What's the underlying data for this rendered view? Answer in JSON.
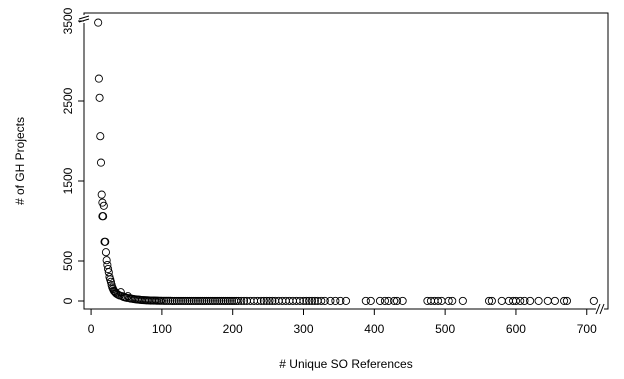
{
  "chart_data": {
    "type": "scatter",
    "title": "",
    "xlabel": "# Unique SO References",
    "ylabel": "# of GH Projects",
    "xlim": [
      -10,
      730
    ],
    "ylim": [
      -100,
      3600
    ],
    "x_ticks": [
      0,
      100,
      200,
      300,
      400,
      500,
      600,
      700
    ],
    "y_ticks": [
      0,
      500,
      1500,
      2500,
      3500
    ],
    "axis_break": true,
    "grid": false,
    "legend": "none",
    "marker": "open-circle",
    "point_color": "#000000",
    "series": [
      {
        "points": [
          [
            10,
            3480
          ],
          [
            11,
            2780
          ],
          [
            12,
            2540
          ],
          [
            13,
            2060
          ],
          [
            14,
            1730
          ],
          [
            15,
            1330
          ],
          [
            16,
            1230
          ],
          [
            16,
            1060
          ],
          [
            17,
            1060
          ],
          [
            18,
            1190
          ],
          [
            19,
            740
          ],
          [
            20,
            740
          ],
          [
            21,
            610
          ],
          [
            22,
            510
          ],
          [
            23,
            450
          ],
          [
            24,
            400
          ],
          [
            25,
            360
          ],
          [
            26,
            300
          ],
          [
            27,
            270
          ],
          [
            28,
            240
          ],
          [
            29,
            200
          ],
          [
            30,
            170
          ],
          [
            31,
            150
          ],
          [
            32,
            130
          ],
          [
            33,
            120
          ],
          [
            34,
            110
          ],
          [
            35,
            100
          ],
          [
            36,
            90
          ],
          [
            38,
            80
          ],
          [
            40,
            70
          ],
          [
            42,
            110
          ],
          [
            44,
            60
          ],
          [
            46,
            50
          ],
          [
            48,
            45
          ],
          [
            50,
            40
          ],
          [
            52,
            60
          ],
          [
            54,
            35
          ],
          [
            56,
            30
          ],
          [
            58,
            28
          ],
          [
            60,
            25
          ],
          [
            62,
            22
          ],
          [
            64,
            20
          ],
          [
            66,
            18
          ],
          [
            68,
            16
          ],
          [
            70,
            14
          ],
          [
            72,
            12
          ],
          [
            74,
            11
          ],
          [
            76,
            10
          ],
          [
            78,
            9
          ],
          [
            80,
            8
          ],
          [
            82,
            7
          ],
          [
            84,
            6
          ],
          [
            86,
            6
          ],
          [
            88,
            5
          ],
          [
            90,
            5
          ],
          [
            92,
            4
          ],
          [
            94,
            4
          ],
          [
            96,
            3
          ],
          [
            98,
            3
          ],
          [
            100,
            3
          ],
          [
            103,
            2
          ],
          [
            106,
            2
          ],
          [
            109,
            2
          ],
          [
            112,
            2
          ],
          [
            115,
            1
          ],
          [
            118,
            1
          ],
          [
            121,
            1
          ],
          [
            124,
            1
          ],
          [
            127,
            1
          ],
          [
            130,
            1
          ],
          [
            133,
            1
          ],
          [
            136,
            1
          ],
          [
            139,
            1
          ],
          [
            142,
            1
          ],
          [
            145,
            1
          ],
          [
            148,
            1
          ],
          [
            151,
            1
          ],
          [
            154,
            1
          ],
          [
            157,
            1
          ],
          [
            160,
            1
          ],
          [
            163,
            1
          ],
          [
            166,
            1
          ],
          [
            169,
            1
          ],
          [
            172,
            1
          ],
          [
            175,
            1
          ],
          [
            178,
            1
          ],
          [
            181,
            1
          ],
          [
            184,
            1
          ],
          [
            187,
            1
          ],
          [
            190,
            1
          ],
          [
            193,
            1
          ],
          [
            196,
            1
          ],
          [
            199,
            1
          ],
          [
            202,
            1
          ],
          [
            205,
            1
          ],
          [
            208,
            1
          ],
          [
            212,
            1
          ],
          [
            216,
            1
          ],
          [
            220,
            1
          ],
          [
            225,
            1
          ],
          [
            230,
            1
          ],
          [
            235,
            1
          ],
          [
            240,
            1
          ],
          [
            244,
            1
          ],
          [
            248,
            1
          ],
          [
            252,
            1
          ],
          [
            256,
            1
          ],
          [
            260,
            1
          ],
          [
            265,
            1
          ],
          [
            270,
            1
          ],
          [
            275,
            1
          ],
          [
            280,
            1
          ],
          [
            285,
            1
          ],
          [
            290,
            1
          ],
          [
            295,
            1
          ],
          [
            300,
            1
          ],
          [
            304,
            1
          ],
          [
            308,
            1
          ],
          [
            312,
            1
          ],
          [
            316,
            1
          ],
          [
            320,
            1
          ],
          [
            325,
            1
          ],
          [
            330,
            1
          ],
          [
            338,
            1
          ],
          [
            345,
            1
          ],
          [
            352,
            1
          ],
          [
            360,
            1
          ],
          [
            388,
            1
          ],
          [
            395,
            1
          ],
          [
            408,
            1
          ],
          [
            415,
            1
          ],
          [
            420,
            1
          ],
          [
            428,
            1
          ],
          [
            432,
            1
          ],
          [
            440,
            1
          ],
          [
            475,
            1
          ],
          [
            480,
            1
          ],
          [
            485,
            1
          ],
          [
            490,
            1
          ],
          [
            495,
            1
          ],
          [
            505,
            1
          ],
          [
            510,
            1
          ],
          [
            525,
            1
          ],
          [
            562,
            1
          ],
          [
            566,
            1
          ],
          [
            580,
            1
          ],
          [
            590,
            1
          ],
          [
            596,
            1
          ],
          [
            600,
            1
          ],
          [
            606,
            1
          ],
          [
            612,
            1
          ],
          [
            620,
            1
          ],
          [
            632,
            1
          ],
          [
            645,
            1
          ],
          [
            655,
            1
          ],
          [
            668,
            1
          ],
          [
            672,
            1
          ],
          [
            710,
            1
          ]
        ]
      }
    ]
  }
}
